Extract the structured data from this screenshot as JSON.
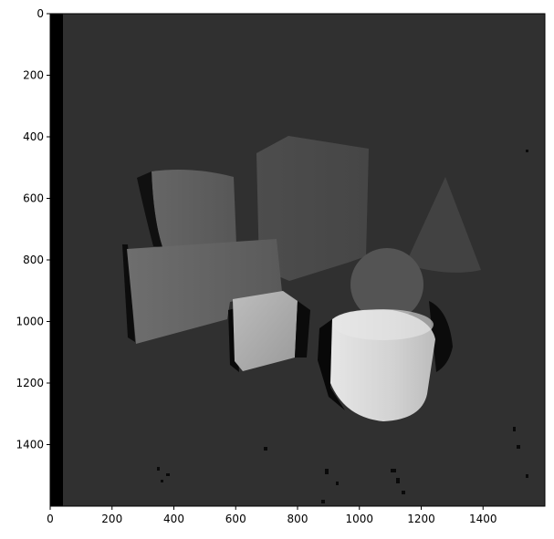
{
  "figure": {
    "type": "depth-image",
    "colormap": "gray"
  },
  "chart_data": {
    "type": "heatmap",
    "title": "",
    "xlabel": "",
    "ylabel": "",
    "xlim": [
      0,
      1600
    ],
    "ylim": [
      1600,
      0
    ],
    "x_ticks": [
      0,
      200,
      400,
      600,
      800,
      1000,
      1200,
      1400
    ],
    "y_ticks": [
      0,
      200,
      400,
      600,
      800,
      1000,
      1200,
      1400
    ],
    "x_tick_labels": [
      "0",
      "200",
      "400",
      "600",
      "800",
      "1000",
      "1200",
      "1400"
    ],
    "y_tick_labels": [
      "0",
      "200",
      "400",
      "600",
      "800",
      "1000",
      "1200",
      "1400"
    ],
    "grid": false,
    "objects": [
      {
        "name": "cylinder-back-left",
        "shade": "#5f5f5f"
      },
      {
        "name": "box-left",
        "shade": "#676767"
      },
      {
        "name": "cube-back",
        "shade": "#4b4b4b"
      },
      {
        "name": "cone",
        "shade": "#424242"
      },
      {
        "name": "sphere",
        "shade": "#545454"
      },
      {
        "name": "cube-front",
        "shade": "#a8a8a8"
      },
      {
        "name": "cylinder-front",
        "shade": "#d8d8d8"
      }
    ]
  }
}
